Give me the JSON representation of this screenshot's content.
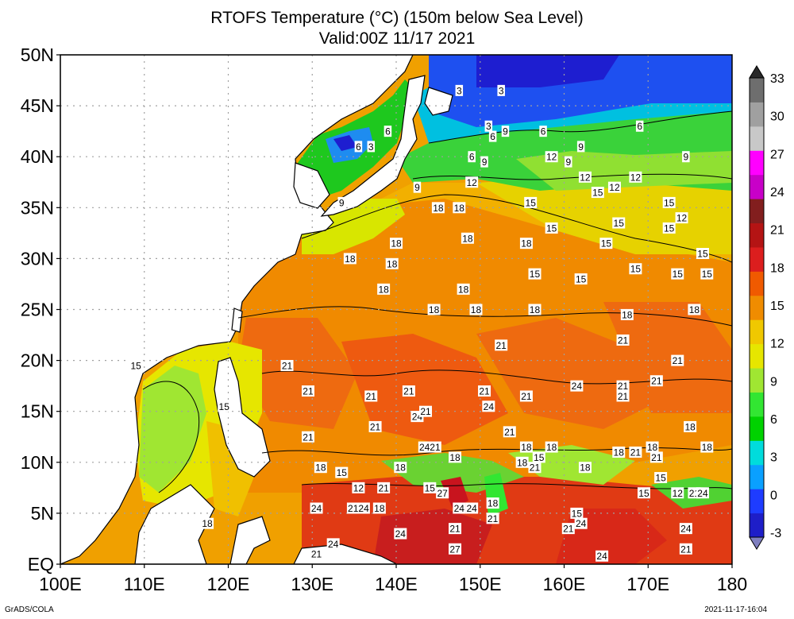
{
  "title": "RTOFS Temperature (°C) (150m below Sea Level)",
  "subtitle": "Valid:00Z 11/17 2021",
  "footer_left": "GrADS/COLA",
  "footer_right": "2021-11-17-16:04",
  "map": {
    "lon_range": [
      100,
      180
    ],
    "lat_range": [
      0,
      50
    ],
    "lon_ticks": [
      "100E",
      "110E",
      "120E",
      "130E",
      "140E",
      "150E",
      "160E",
      "170E",
      "180"
    ],
    "lat_ticks": [
      "EQ",
      "5N",
      "10N",
      "15N",
      "20N",
      "25N",
      "30N",
      "35N",
      "40N",
      "45N",
      "50N"
    ],
    "grid": "dotted",
    "land_color": "#ffffff"
  },
  "colorbar": {
    "labels": [
      "-3",
      "0",
      "3",
      "6",
      "9",
      "12",
      "15",
      "18",
      "21",
      "24",
      "27",
      "30",
      "33"
    ],
    "colors": [
      "#7f7fbf",
      "#1e1ec8",
      "#1e3cff",
      "#0aa0ff",
      "#00dcdc",
      "#00d200",
      "#32e632",
      "#a0e632",
      "#e6e600",
      "#f0c800",
      "#f08c00",
      "#f05a00",
      "#dc1e1e",
      "#b41414",
      "#821e1e",
      "#c800c8",
      "#ff00ff",
      "#c8c8c8",
      "#a0a0a0",
      "#6e6e6e",
      "#282828"
    ]
  },
  "contour_labels": [
    {
      "text": "3",
      "lon": 147.5,
      "lat": 46.5
    },
    {
      "text": "3",
      "lon": 152.5,
      "lat": 46.5
    },
    {
      "text": "3",
      "lon": 151.0,
      "lat": 43.0
    },
    {
      "text": "6",
      "lon": 135.5,
      "lat": 41.0
    },
    {
      "text": "3",
      "lon": 137.0,
      "lat": 41.0
    },
    {
      "text": "6",
      "lon": 139.0,
      "lat": 42.5
    },
    {
      "text": "6",
      "lon": 151.5,
      "lat": 42.0
    },
    {
      "text": "9",
      "lon": 153.0,
      "lat": 42.5
    },
    {
      "text": "6",
      "lon": 157.5,
      "lat": 42.5
    },
    {
      "text": "9",
      "lon": 162.0,
      "lat": 41.0
    },
    {
      "text": "6",
      "lon": 169.0,
      "lat": 43.0
    },
    {
      "text": "9",
      "lon": 174.5,
      "lat": 40.0
    },
    {
      "text": "6",
      "lon": 149.0,
      "lat": 40.0
    },
    {
      "text": "9",
      "lon": 150.5,
      "lat": 39.5
    },
    {
      "text": "12",
      "lon": 158.5,
      "lat": 40.0
    },
    {
      "text": "9",
      "lon": 160.5,
      "lat": 39.5
    },
    {
      "text": "12",
      "lon": 162.5,
      "lat": 38.0
    },
    {
      "text": "12",
      "lon": 166.0,
      "lat": 37.0
    },
    {
      "text": "12",
      "lon": 168.5,
      "lat": 38.0
    },
    {
      "text": "15",
      "lon": 164.0,
      "lat": 36.5
    },
    {
      "text": "15",
      "lon": 172.5,
      "lat": 35.5
    },
    {
      "text": "9",
      "lon": 133.5,
      "lat": 35.5
    },
    {
      "text": "9",
      "lon": 142.5,
      "lat": 37.0
    },
    {
      "text": "12",
      "lon": 149.0,
      "lat": 37.5
    },
    {
      "text": "18",
      "lon": 145.0,
      "lat": 35.0
    },
    {
      "text": "18",
      "lon": 147.5,
      "lat": 35.0
    },
    {
      "text": "15",
      "lon": 156.0,
      "lat": 35.5
    },
    {
      "text": "15",
      "lon": 166.5,
      "lat": 33.5
    },
    {
      "text": "15",
      "lon": 172.5,
      "lat": 33.0
    },
    {
      "text": "12",
      "lon": 174.0,
      "lat": 34.0
    },
    {
      "text": "15",
      "lon": 158.5,
      "lat": 33.0
    },
    {
      "text": "18",
      "lon": 148.5,
      "lat": 32.0
    },
    {
      "text": "18",
      "lon": 140.0,
      "lat": 31.5
    },
    {
      "text": "18",
      "lon": 155.5,
      "lat": 31.5
    },
    {
      "text": "15",
      "lon": 165.0,
      "lat": 31.5
    },
    {
      "text": "15",
      "lon": 176.5,
      "lat": 30.5
    },
    {
      "text": "18",
      "lon": 134.5,
      "lat": 30.0
    },
    {
      "text": "18",
      "lon": 139.5,
      "lat": 29.5
    },
    {
      "text": "15",
      "lon": 168.5,
      "lat": 29.0
    },
    {
      "text": "15",
      "lon": 156.5,
      "lat": 28.5
    },
    {
      "text": "15",
      "lon": 162.0,
      "lat": 28.0
    },
    {
      "text": "15",
      "lon": 173.5,
      "lat": 28.5
    },
    {
      "text": "15",
      "lon": 177.0,
      "lat": 28.5
    },
    {
      "text": "18",
      "lon": 138.5,
      "lat": 27.0
    },
    {
      "text": "18",
      "lon": 148.0,
      "lat": 27.0
    },
    {
      "text": "18",
      "lon": 144.5,
      "lat": 25.0
    },
    {
      "text": "18",
      "lon": 149.5,
      "lat": 25.0
    },
    {
      "text": "18",
      "lon": 156.5,
      "lat": 25.0
    },
    {
      "text": "18",
      "lon": 167.5,
      "lat": 24.5
    },
    {
      "text": "18",
      "lon": 175.5,
      "lat": 25.0
    },
    {
      "text": "21",
      "lon": 167.0,
      "lat": 22.0
    },
    {
      "text": "21",
      "lon": 152.5,
      "lat": 21.5
    },
    {
      "text": "21",
      "lon": 127.0,
      "lat": 19.5
    },
    {
      "text": "21",
      "lon": 173.5,
      "lat": 20.0
    },
    {
      "text": "21",
      "lon": 129.5,
      "lat": 17.0
    },
    {
      "text": "21",
      "lon": 137.0,
      "lat": 16.5
    },
    {
      "text": "21",
      "lon": 141.5,
      "lat": 17.0
    },
    {
      "text": "21",
      "lon": 150.5,
      "lat": 17.0
    },
    {
      "text": "21",
      "lon": 155.5,
      "lat": 16.5
    },
    {
      "text": "24",
      "lon": 161.5,
      "lat": 17.5
    },
    {
      "text": "21",
      "lon": 167.0,
      "lat": 17.5
    },
    {
      "text": "21",
      "lon": 167.0,
      "lat": 16.5
    },
    {
      "text": "21",
      "lon": 171.0,
      "lat": 18.0
    },
    {
      "text": "15",
      "lon": 109.0,
      "lat": 19.5
    },
    {
      "text": "15",
      "lon": 119.5,
      "lat": 15.5
    },
    {
      "text": "21",
      "lon": 137.5,
      "lat": 13.5
    },
    {
      "text": "24",
      "lon": 142.5,
      "lat": 14.5
    },
    {
      "text": "21",
      "lon": 143.5,
      "lat": 15.0
    },
    {
      "text": "24",
      "lon": 151.0,
      "lat": 15.5
    },
    {
      "text": "21",
      "lon": 129.5,
      "lat": 12.5
    },
    {
      "text": "21",
      "lon": 153.5,
      "lat": 13.0
    },
    {
      "text": "18",
      "lon": 155.5,
      "lat": 11.5
    },
    {
      "text": "2421",
      "lon": 144.0,
      "lat": 11.5
    },
    {
      "text": "18",
      "lon": 147.0,
      "lat": 10.5
    },
    {
      "text": "18",
      "lon": 158.5,
      "lat": 11.5
    },
    {
      "text": "15",
      "lon": 157.0,
      "lat": 10.5
    },
    {
      "text": "18",
      "lon": 166.5,
      "lat": 11.0
    },
    {
      "text": "21",
      "lon": 168.5,
      "lat": 11.0
    },
    {
      "text": "18",
      "lon": 170.5,
      "lat": 11.5
    },
    {
      "text": "21",
      "lon": 171.0,
      "lat": 10.5
    },
    {
      "text": "18",
      "lon": 175.0,
      "lat": 13.5
    },
    {
      "text": "18",
      "lon": 177.0,
      "lat": 11.5
    },
    {
      "text": "18",
      "lon": 131.0,
      "lat": 9.5
    },
    {
      "text": "15",
      "lon": 133.5,
      "lat": 9.0
    },
    {
      "text": "18",
      "lon": 140.5,
      "lat": 9.5
    },
    {
      "text": "18",
      "lon": 155.0,
      "lat": 10.0
    },
    {
      "text": "21",
      "lon": 156.5,
      "lat": 9.5
    },
    {
      "text": "18",
      "lon": 162.5,
      "lat": 9.5
    },
    {
      "text": "15",
      "lon": 171.5,
      "lat": 8.5
    },
    {
      "text": "12",
      "lon": 135.5,
      "lat": 7.5
    },
    {
      "text": "21",
      "lon": 138.5,
      "lat": 7.5
    },
    {
      "text": "15",
      "lon": 144.0,
      "lat": 7.5
    },
    {
      "text": "27",
      "lon": 145.5,
      "lat": 7.0
    },
    {
      "text": "15",
      "lon": 169.5,
      "lat": 7.0
    },
    {
      "text": "12",
      "lon": 173.5,
      "lat": 7.0
    },
    {
      "text": "21",
      "lon": 175.5,
      "lat": 7.0
    },
    {
      "text": "24",
      "lon": 176.5,
      "lat": 7.0
    },
    {
      "text": "24",
      "lon": 130.5,
      "lat": 5.5
    },
    {
      "text": "2124",
      "lon": 135.5,
      "lat": 5.5
    },
    {
      "text": "18",
      "lon": 138.0,
      "lat": 5.5
    },
    {
      "text": "24",
      "lon": 147.5,
      "lat": 5.5
    },
    {
      "text": "24",
      "lon": 149.0,
      "lat": 5.5
    },
    {
      "text": "18",
      "lon": 151.5,
      "lat": 6.0
    },
    {
      "text": "21",
      "lon": 151.5,
      "lat": 4.5
    },
    {
      "text": "15",
      "lon": 161.5,
      "lat": 5.0
    },
    {
      "text": "24",
      "lon": 162.0,
      "lat": 4.0
    },
    {
      "text": "21",
      "lon": 160.5,
      "lat": 3.5
    },
    {
      "text": "18",
      "lon": 117.5,
      "lat": 4.0
    },
    {
      "text": "21",
      "lon": 147.0,
      "lat": 3.5
    },
    {
      "text": "24",
      "lon": 140.5,
      "lat": 3.0
    },
    {
      "text": "24",
      "lon": 174.5,
      "lat": 3.5
    },
    {
      "text": "24",
      "lon": 132.5,
      "lat": 2.0
    },
    {
      "text": "21",
      "lon": 174.5,
      "lat": 1.5
    },
    {
      "text": "27",
      "lon": 147.0,
      "lat": 1.5
    },
    {
      "text": "21",
      "lon": 130.5,
      "lat": 1.0
    },
    {
      "text": "24",
      "lon": 164.5,
      "lat": 0.8
    }
  ]
}
